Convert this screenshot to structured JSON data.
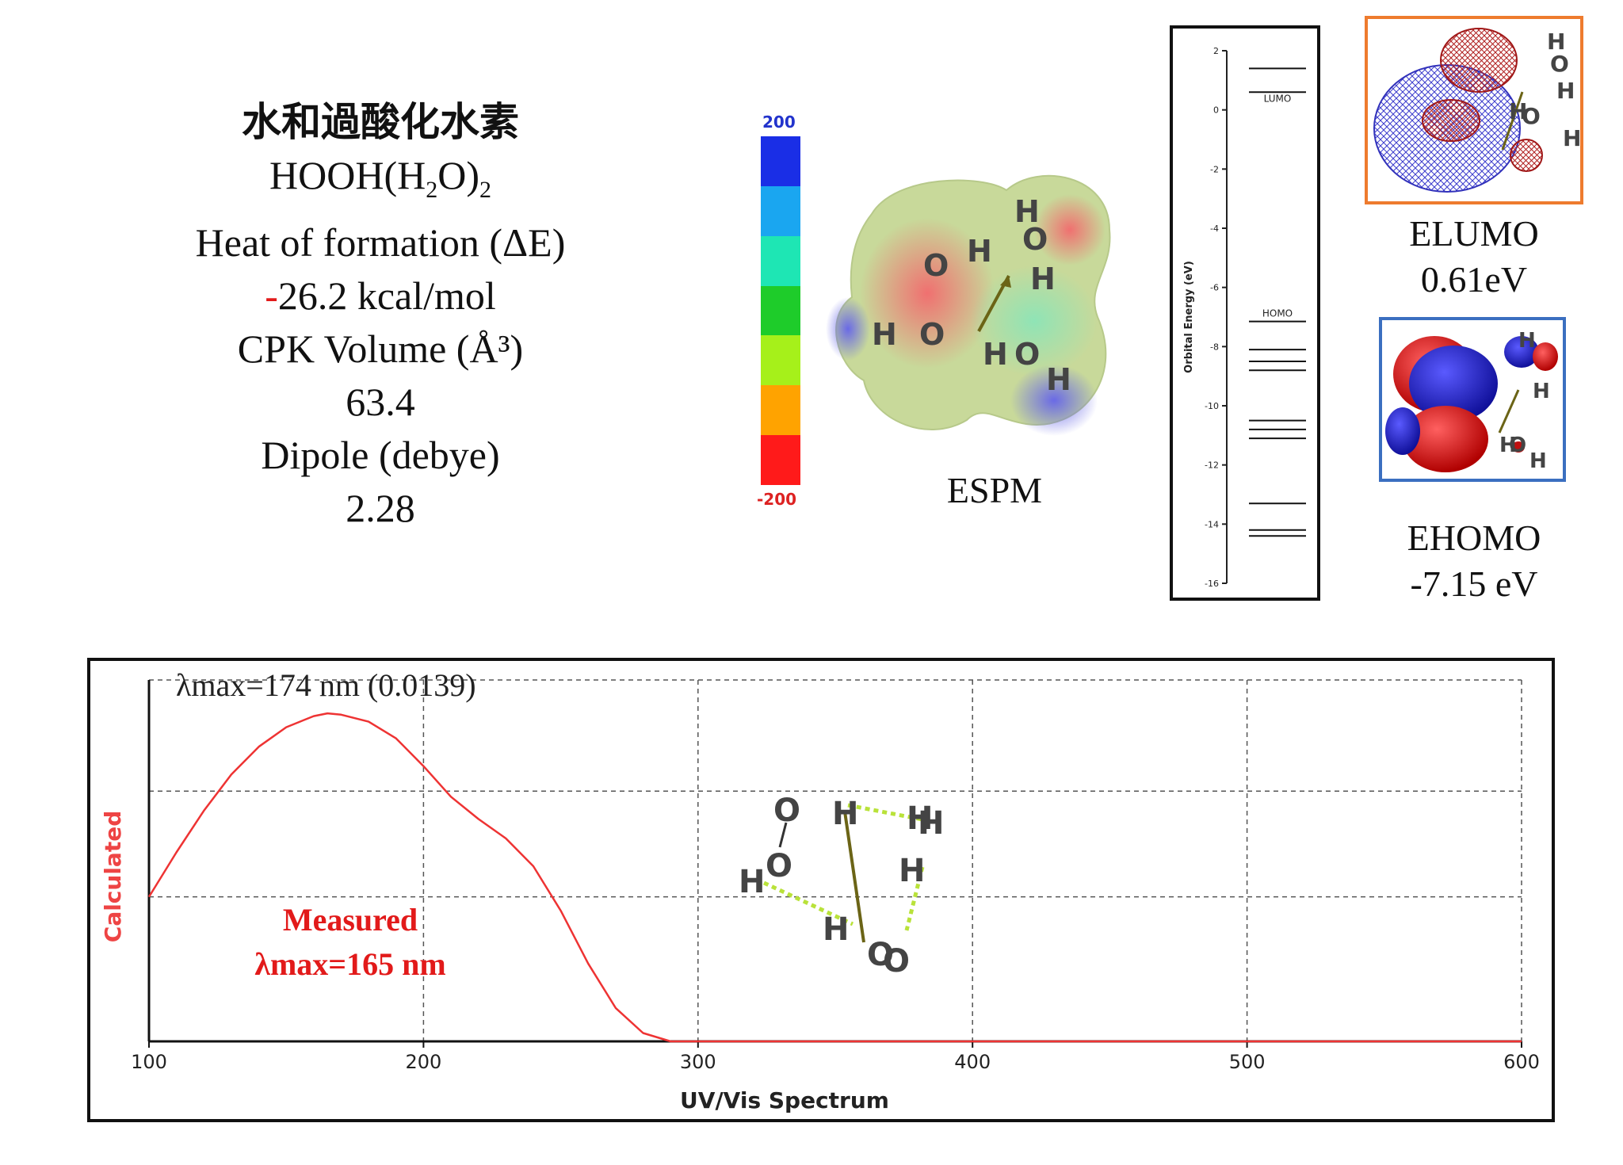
{
  "properties": {
    "title": "水和過酸化水素",
    "formula_main": "HOOH(H",
    "formula_sub1": "2",
    "formula_mid": "O)",
    "formula_sub2": "2",
    "heat_label": "Heat of formation (ΔE)",
    "heat_sign": "-",
    "heat_value": "26.2 kcal/mol",
    "volume_label": "CPK Volume (Å³)",
    "volume_value": "63.4",
    "dipole_label": "Dipole (debye)",
    "dipole_value": "2.28"
  },
  "espm": {
    "scale_max": "200",
    "scale_min": "-200",
    "scale_colors": [
      "#1a2ee6",
      "#1aa6f0",
      "#1ee6b4",
      "#1ecc2a",
      "#a6f01a",
      "#ffa300",
      "#ff1a1a"
    ],
    "caption": "ESPM",
    "atoms": [
      "H",
      "O",
      "H",
      "O",
      "H",
      "H",
      "O",
      "H",
      "O",
      "H"
    ]
  },
  "orbital_diagram": {
    "ylabel": "Orbital Energy (eV)",
    "ticks": [
      "2",
      "0",
      "-2",
      "-4",
      "-6",
      "-8",
      "-10",
      "-12",
      "-14",
      "-16"
    ],
    "ylim": [
      -16,
      2
    ],
    "levels": [
      1.4,
      0.6,
      -7.15,
      -8.1,
      -8.5,
      -8.8,
      -10.5,
      -10.8,
      -11.1,
      -13.3,
      -14.2,
      -14.4
    ],
    "lumo_label": "LUMO",
    "homo_label": "HOMO"
  },
  "elumo": {
    "caption": "ELUMO",
    "value": "0.61eV",
    "atoms": [
      "H",
      "O",
      "H",
      "H",
      "O",
      "H"
    ]
  },
  "ehomo": {
    "caption": "EHOMO",
    "value": "-7.15 eV",
    "atoms": [
      "H",
      "H",
      "H",
      "O",
      "H"
    ]
  },
  "spectrum_molecule": {
    "atoms": [
      "O",
      "H",
      "O",
      "H",
      "H",
      "O",
      "H",
      "H",
      "O",
      "H"
    ]
  },
  "chart_data": {
    "type": "line",
    "title": "",
    "xlabel": "UV/Vis Spectrum",
    "ylabel": "Calculated",
    "xlim": [
      100,
      600
    ],
    "ylim": [
      0,
      1.3
    ],
    "x_ticks": [
      "100",
      "200",
      "300",
      "400",
      "500",
      "600"
    ],
    "grid": true,
    "annotation": "λmax=174 nm (0.0139)",
    "measured_label": "Measured",
    "measured_value": "λmax=165 nm",
    "series": [
      {
        "color": "#ee3333",
        "x": [
          100,
          110,
          120,
          130,
          140,
          150,
          160,
          165,
          170,
          180,
          190,
          200,
          210,
          220,
          230,
          240,
          250,
          260,
          270,
          280,
          290,
          300,
          320,
          350,
          400,
          450,
          500,
          550,
          600
        ],
        "y": [
          0.52,
          0.68,
          0.83,
          0.96,
          1.06,
          1.13,
          1.17,
          1.18,
          1.175,
          1.15,
          1.09,
          0.99,
          0.88,
          0.8,
          0.73,
          0.63,
          0.47,
          0.28,
          0.12,
          0.03,
          0.0,
          0.0,
          0.0,
          0.0,
          0.0,
          0.0,
          0.0,
          0.0,
          0.0
        ]
      }
    ]
  }
}
